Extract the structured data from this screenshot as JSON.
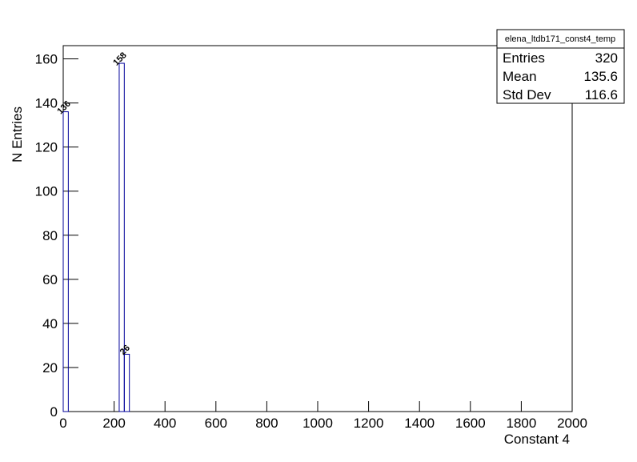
{
  "chart_data": {
    "type": "histogram",
    "x_label": "Constant 4",
    "y_label": "N Entries",
    "bins": [
      0,
      20,
      40,
      60,
      80,
      100,
      120,
      140,
      160,
      180,
      200,
      220,
      240,
      260,
      280,
      300,
      320,
      340,
      360,
      380,
      400,
      420,
      440,
      460,
      480,
      500,
      520,
      540,
      560,
      580,
      600,
      620,
      640,
      660,
      680,
      700,
      720,
      740,
      760,
      780,
      800,
      820,
      840,
      860,
      880,
      900,
      920,
      940,
      960,
      980,
      1000,
      1020,
      1040,
      1060,
      1080,
      1100,
      1120,
      1140,
      1160,
      1180,
      1200,
      1220,
      1240,
      1260,
      1280,
      1300,
      1320,
      1340,
      1360,
      1380,
      1400,
      1420,
      1440,
      1460,
      1480,
      1500,
      1520,
      1540,
      1560,
      1580,
      1600,
      1620,
      1640,
      1660,
      1680,
      1700,
      1720,
      1740,
      1760,
      1780,
      1800,
      1820,
      1840,
      1860,
      1880,
      1900,
      1920,
      1940,
      1960,
      1980,
      2000
    ],
    "counts": [
      136,
      0,
      0,
      0,
      0,
      0,
      0,
      0,
      0,
      0,
      0,
      158,
      26,
      0,
      0,
      0,
      0,
      0,
      0,
      0,
      0,
      0,
      0,
      0,
      0,
      0,
      0,
      0,
      0,
      0,
      0,
      0,
      0,
      0,
      0,
      0,
      0,
      0,
      0,
      0,
      0,
      0,
      0,
      0,
      0,
      0,
      0,
      0,
      0,
      0,
      0,
      0,
      0,
      0,
      0,
      0,
      0,
      0,
      0,
      0,
      0,
      0,
      0,
      0,
      0,
      0,
      0,
      0,
      0,
      0,
      0,
      0,
      0,
      0,
      0,
      0,
      0,
      0,
      0,
      0,
      0,
      0,
      0,
      0,
      0,
      0,
      0,
      0,
      0,
      0,
      0,
      0,
      0,
      0,
      0,
      0,
      0,
      0,
      0,
      0
    ],
    "color": "#000099",
    "xlim": [
      0,
      2000
    ],
    "xticks": [
      0,
      200,
      400,
      600,
      800,
      1000,
      1200,
      1400,
      1600,
      1800,
      2000
    ],
    "ylim": [
      0,
      166
    ],
    "yticks": [
      0,
      20,
      40,
      60,
      80,
      100,
      120,
      140,
      160
    ],
    "stats": {
      "title": "elena_ltdb171_const4_temp",
      "rows": [
        [
          "Entries",
          320
        ],
        [
          "Mean",
          135.6
        ],
        [
          "Std Dev",
          116.6
        ]
      ]
    }
  }
}
